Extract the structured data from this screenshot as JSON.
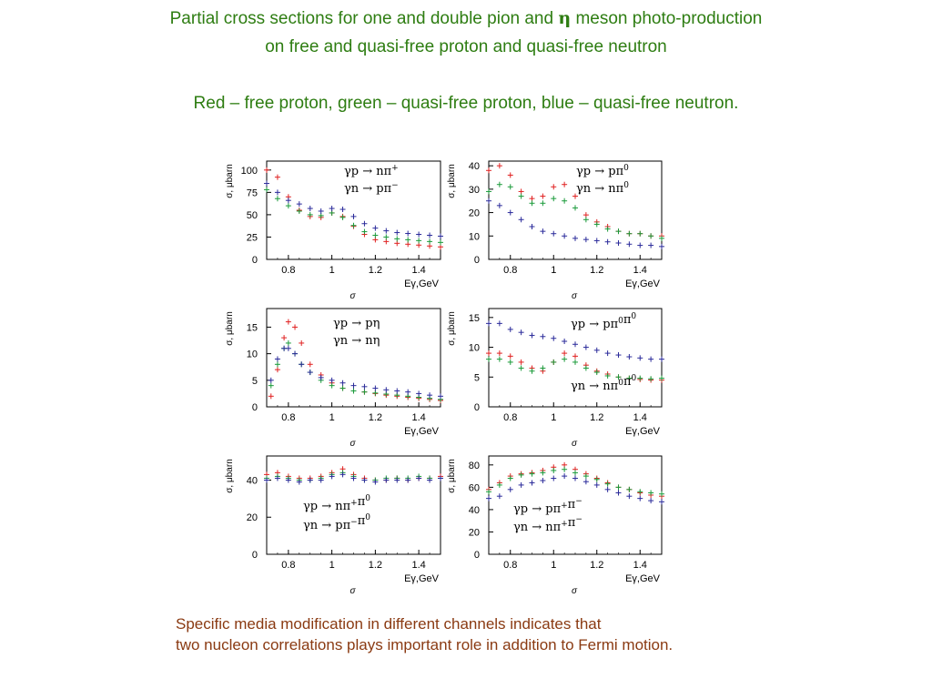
{
  "header": {
    "title_line1_before": "Partial cross sections for one and double pion and ",
    "title_eta": "η",
    "title_line1_after": " meson photo-production",
    "title_line2": "on free and quasi-free proton and quasi-free neutron",
    "legend_line": "Red – free proton, green – quasi-free proton, blue – quasi-free neutron."
  },
  "footer": {
    "line1": "Specific media modification in different channels indicates that",
    "line2": "two nucleon correlations plays important role in addition to Fermi motion."
  },
  "colors": {
    "red": "#e02020",
    "green": "#1a9a3a",
    "blue": "#2a2a9a"
  },
  "chart_data": [
    {
      "type": "scatter",
      "ylabel": "σ, μbarn",
      "xlabel": "Eγ,GeV",
      "below_label": "σ",
      "reactions": [
        "γp → nπ⁺",
        "γn → pπ⁻"
      ],
      "xlim": [
        0.7,
        1.5
      ],
      "ylim": [
        0,
        110
      ],
      "xticks": [
        0.8,
        1,
        1.2,
        1.4
      ],
      "xtick_labels": [
        "0.8",
        "1",
        "1.2",
        "1.4"
      ],
      "yticks": [
        0,
        25,
        50,
        75,
        100
      ],
      "ytick_labels": [
        "0",
        "25",
        "50",
        "75",
        "100"
      ],
      "series": [
        {
          "color": "red",
          "x": [
            0.7,
            0.75,
            0.8,
            0.85,
            0.9,
            0.95,
            1.0,
            1.05,
            1.1,
            1.15,
            1.2,
            1.25,
            1.3,
            1.35,
            1.4,
            1.45,
            1.5
          ],
          "y": [
            100,
            92,
            70,
            55,
            48,
            47,
            52,
            48,
            37,
            28,
            22,
            20,
            18,
            17,
            16,
            15,
            14
          ]
        },
        {
          "color": "green",
          "x": [
            0.7,
            0.75,
            0.8,
            0.85,
            0.9,
            0.95,
            1.0,
            1.05,
            1.1,
            1.15,
            1.2,
            1.25,
            1.3,
            1.35,
            1.4,
            1.45,
            1.5
          ],
          "y": [
            78,
            68,
            60,
            54,
            50,
            49,
            52,
            47,
            38,
            31,
            27,
            25,
            23,
            22,
            21,
            20,
            19
          ]
        },
        {
          "color": "blue",
          "x": [
            0.7,
            0.75,
            0.8,
            0.85,
            0.9,
            0.95,
            1.0,
            1.05,
            1.1,
            1.15,
            1.2,
            1.25,
            1.3,
            1.35,
            1.4,
            1.45,
            1.5
          ],
          "y": [
            85,
            75,
            66,
            62,
            57,
            54,
            57,
            56,
            48,
            40,
            35,
            32,
            30,
            29,
            28,
            27,
            26
          ]
        }
      ]
    },
    {
      "type": "scatter",
      "ylabel": "σ, μbarn",
      "xlabel": "Eγ,GeV",
      "below_label": "σ",
      "reactions": [
        "γp → pπ⁰",
        "γn → nπ⁰"
      ],
      "xlim": [
        0.7,
        1.5
      ],
      "ylim": [
        0,
        42
      ],
      "xticks": [
        0.8,
        1,
        1.2,
        1.4
      ],
      "xtick_labels": [
        "0.8",
        "1",
        "1.2",
        "1.4"
      ],
      "yticks": [
        0,
        10,
        20,
        30,
        40
      ],
      "ytick_labels": [
        "0",
        "10",
        "20",
        "30",
        "40"
      ],
      "series": [
        {
          "color": "red",
          "x": [
            0.7,
            0.75,
            0.8,
            0.85,
            0.9,
            0.95,
            1.0,
            1.05,
            1.1,
            1.15,
            1.2,
            1.25,
            1.3,
            1.35,
            1.4,
            1.45,
            1.5
          ],
          "y": [
            38,
            40,
            36,
            29,
            26,
            27,
            31,
            32,
            27,
            19,
            16,
            14,
            12,
            11,
            11,
            10,
            10
          ]
        },
        {
          "color": "green",
          "x": [
            0.7,
            0.75,
            0.8,
            0.85,
            0.9,
            0.95,
            1.0,
            1.05,
            1.1,
            1.15,
            1.2,
            1.25,
            1.3,
            1.35,
            1.4,
            1.45,
            1.5
          ],
          "y": [
            29,
            32,
            31,
            27,
            24,
            24,
            26,
            25,
            22,
            17,
            15,
            13,
            12,
            11,
            11,
            10,
            9
          ]
        },
        {
          "color": "blue",
          "x": [
            0.7,
            0.75,
            0.8,
            0.85,
            0.9,
            0.95,
            1.0,
            1.05,
            1.1,
            1.15,
            1.2,
            1.25,
            1.3,
            1.35,
            1.4,
            1.45,
            1.5
          ],
          "y": [
            25,
            23,
            20,
            17,
            14,
            12,
            11,
            10,
            9,
            8.5,
            8,
            7.5,
            7,
            6.5,
            6,
            6,
            5.5
          ]
        }
      ]
    },
    {
      "type": "scatter",
      "ylabel": "σ, μbarn",
      "xlabel": "Eγ,GeV",
      "below_label": "σ",
      "reactions": [
        "γp → pη",
        "γn → nη"
      ],
      "xlim": [
        0.7,
        1.5
      ],
      "ylim": [
        0,
        18.5
      ],
      "xticks": [
        0.8,
        1,
        1.2,
        1.4
      ],
      "xtick_labels": [
        "0.8",
        "1",
        "1.2",
        "1.4"
      ],
      "yticks": [
        0,
        5,
        10,
        15
      ],
      "ytick_labels": [
        "0",
        "5",
        "10",
        "15"
      ],
      "series": [
        {
          "color": "red",
          "x": [
            0.72,
            0.75,
            0.78,
            0.8,
            0.83,
            0.86,
            0.9,
            0.95,
            1.0,
            1.05,
            1.1,
            1.15,
            1.2,
            1.25,
            1.3,
            1.35,
            1.4,
            1.45,
            1.5
          ],
          "y": [
            2,
            7,
            13,
            16,
            15,
            12,
            8,
            6,
            4.5,
            3.5,
            3,
            2.8,
            2.5,
            2.2,
            2,
            1.8,
            1.6,
            1.4,
            1.2
          ]
        },
        {
          "color": "green",
          "x": [
            0.72,
            0.75,
            0.78,
            0.8,
            0.83,
            0.86,
            0.9,
            0.95,
            1.0,
            1.05,
            1.1,
            1.15,
            1.2,
            1.25,
            1.3,
            1.35,
            1.4,
            1.45,
            1.5
          ],
          "y": [
            4,
            8,
            11,
            12,
            10,
            8,
            6.5,
            5,
            4,
            3.5,
            3,
            2.8,
            2.6,
            2.4,
            2.2,
            2,
            1.8,
            1.6,
            1.4
          ]
        },
        {
          "color": "blue",
          "x": [
            0.72,
            0.75,
            0.78,
            0.8,
            0.83,
            0.86,
            0.9,
            0.95,
            1.0,
            1.05,
            1.1,
            1.15,
            1.2,
            1.25,
            1.3,
            1.35,
            1.4,
            1.45,
            1.5
          ],
          "y": [
            5,
            9,
            11,
            11,
            10,
            8,
            6.5,
            5.5,
            5,
            4.5,
            4,
            3.8,
            3.5,
            3.2,
            3,
            2.8,
            2.5,
            2.2,
            2
          ]
        }
      ]
    },
    {
      "type": "scatter",
      "ylabel": "σ, μbarn",
      "xlabel": "Eγ,GeV",
      "below_label": "σ",
      "reactions": [
        "γp → pπ⁰π⁰",
        "γn → nπ⁰π⁰"
      ],
      "xlim": [
        0.7,
        1.5
      ],
      "ylim": [
        0,
        16.5
      ],
      "xticks": [
        0.8,
        1,
        1.2,
        1.4
      ],
      "xtick_labels": [
        "0.8",
        "1",
        "1.2",
        "1.4"
      ],
      "yticks": [
        0,
        5,
        10,
        15
      ],
      "ytick_labels": [
        "0",
        "5",
        "10",
        "15"
      ],
      "series": [
        {
          "color": "red",
          "x": [
            0.7,
            0.75,
            0.8,
            0.85,
            0.9,
            0.95,
            1.0,
            1.05,
            1.1,
            1.15,
            1.2,
            1.25,
            1.3,
            1.35,
            1.4,
            1.45,
            1.5
          ],
          "y": [
            9,
            9,
            8.5,
            7.5,
            6.5,
            6,
            7.5,
            9,
            8.5,
            7,
            6,
            5.5,
            5,
            4.8,
            4.6,
            4.5,
            4.5
          ]
        },
        {
          "color": "green",
          "x": [
            0.7,
            0.75,
            0.8,
            0.85,
            0.9,
            0.95,
            1.0,
            1.05,
            1.1,
            1.15,
            1.2,
            1.25,
            1.3,
            1.35,
            1.4,
            1.45,
            1.5
          ],
          "y": [
            8,
            8,
            7.5,
            6.5,
            6,
            6.5,
            7.5,
            8,
            7.5,
            6.5,
            5.8,
            5.2,
            5,
            4.8,
            4.8,
            4.7,
            4.8
          ]
        },
        {
          "color": "blue",
          "x": [
            0.7,
            0.75,
            0.8,
            0.85,
            0.9,
            0.95,
            1.0,
            1.05,
            1.1,
            1.15,
            1.2,
            1.25,
            1.3,
            1.35,
            1.4,
            1.45,
            1.5
          ],
          "y": [
            14,
            14,
            13,
            12.5,
            12,
            11.8,
            11.5,
            11,
            10.5,
            10,
            9.5,
            9,
            8.7,
            8.4,
            8.2,
            8,
            8
          ]
        }
      ]
    },
    {
      "type": "scatter",
      "ylabel": "σ, μbarn",
      "xlabel": "Eγ,GeV",
      "below_label": "σ",
      "reactions": [
        "γp → nπ⁺π⁰",
        "γn → pπ⁻π⁰"
      ],
      "xlim": [
        0.7,
        1.5
      ],
      "ylim": [
        0,
        53
      ],
      "xticks": [
        0.8,
        1,
        1.2,
        1.4
      ],
      "xtick_labels": [
        "0.8",
        "1",
        "1.2",
        "1.4"
      ],
      "yticks": [
        0,
        20,
        40
      ],
      "ytick_labels": [
        "0",
        "20",
        "40"
      ],
      "series": [
        {
          "color": "red",
          "x": [
            0.7,
            0.75,
            0.8,
            0.85,
            0.9,
            0.95,
            1.0,
            1.05,
            1.1,
            1.15,
            1.2,
            1.25,
            1.3,
            1.35,
            1.4,
            1.45,
            1.5
          ],
          "y": [
            43,
            44,
            42,
            41,
            41,
            42,
            44,
            46,
            43,
            41,
            40,
            40,
            41,
            40,
            41,
            41,
            42
          ]
        },
        {
          "color": "green",
          "x": [
            0.7,
            0.75,
            0.8,
            0.85,
            0.9,
            0.95,
            1.0,
            1.05,
            1.1,
            1.15,
            1.2,
            1.25,
            1.3,
            1.35,
            1.4,
            1.45,
            1.5
          ],
          "y": [
            41,
            42,
            41,
            40,
            40,
            41,
            43,
            44,
            42,
            40,
            40,
            41,
            41,
            41,
            42,
            41,
            41
          ]
        },
        {
          "color": "blue",
          "x": [
            0.7,
            0.75,
            0.8,
            0.85,
            0.9,
            0.95,
            1.0,
            1.05,
            1.1,
            1.15,
            1.2,
            1.25,
            1.3,
            1.35,
            1.4,
            1.45,
            1.5
          ],
          "y": [
            40,
            41,
            40,
            39,
            40,
            40,
            42,
            43,
            41,
            40,
            39,
            40,
            40,
            40,
            41,
            40,
            41
          ]
        }
      ]
    },
    {
      "type": "scatter",
      "ylabel": "σ, μbarn",
      "xlabel": "Eγ,GeV",
      "below_label": "σ",
      "reactions": [
        "γp → pπ⁺π⁻",
        "γn → nπ⁺π⁻"
      ],
      "xlim": [
        0.7,
        1.5
      ],
      "ylim": [
        0,
        88
      ],
      "xticks": [
        0.8,
        1,
        1.2,
        1.4
      ],
      "xtick_labels": [
        "0.8",
        "1",
        "1.2",
        "1.4"
      ],
      "yticks": [
        0,
        20,
        40,
        60,
        80
      ],
      "ytick_labels": [
        "0",
        "20",
        "40",
        "60",
        "80"
      ],
      "series": [
        {
          "color": "red",
          "x": [
            0.7,
            0.75,
            0.8,
            0.85,
            0.9,
            0.95,
            1.0,
            1.05,
            1.1,
            1.15,
            1.2,
            1.25,
            1.3,
            1.35,
            1.4,
            1.45,
            1.5
          ],
          "y": [
            58,
            64,
            70,
            72,
            73,
            75,
            78,
            80,
            76,
            72,
            68,
            64,
            60,
            58,
            55,
            53,
            52
          ]
        },
        {
          "color": "green",
          "x": [
            0.7,
            0.75,
            0.8,
            0.85,
            0.9,
            0.95,
            1.0,
            1.05,
            1.1,
            1.15,
            1.2,
            1.25,
            1.3,
            1.35,
            1.4,
            1.45,
            1.5
          ],
          "y": [
            56,
            62,
            68,
            71,
            72,
            73,
            75,
            76,
            73,
            70,
            67,
            63,
            60,
            58,
            56,
            55,
            54
          ]
        },
        {
          "color": "blue",
          "x": [
            0.7,
            0.75,
            0.8,
            0.85,
            0.9,
            0.95,
            1.0,
            1.05,
            1.1,
            1.15,
            1.2,
            1.25,
            1.3,
            1.35,
            1.4,
            1.45,
            1.5
          ],
          "y": [
            50,
            52,
            58,
            62,
            64,
            66,
            68,
            70,
            68,
            65,
            62,
            58,
            55,
            52,
            50,
            48,
            47
          ]
        }
      ]
    }
  ]
}
